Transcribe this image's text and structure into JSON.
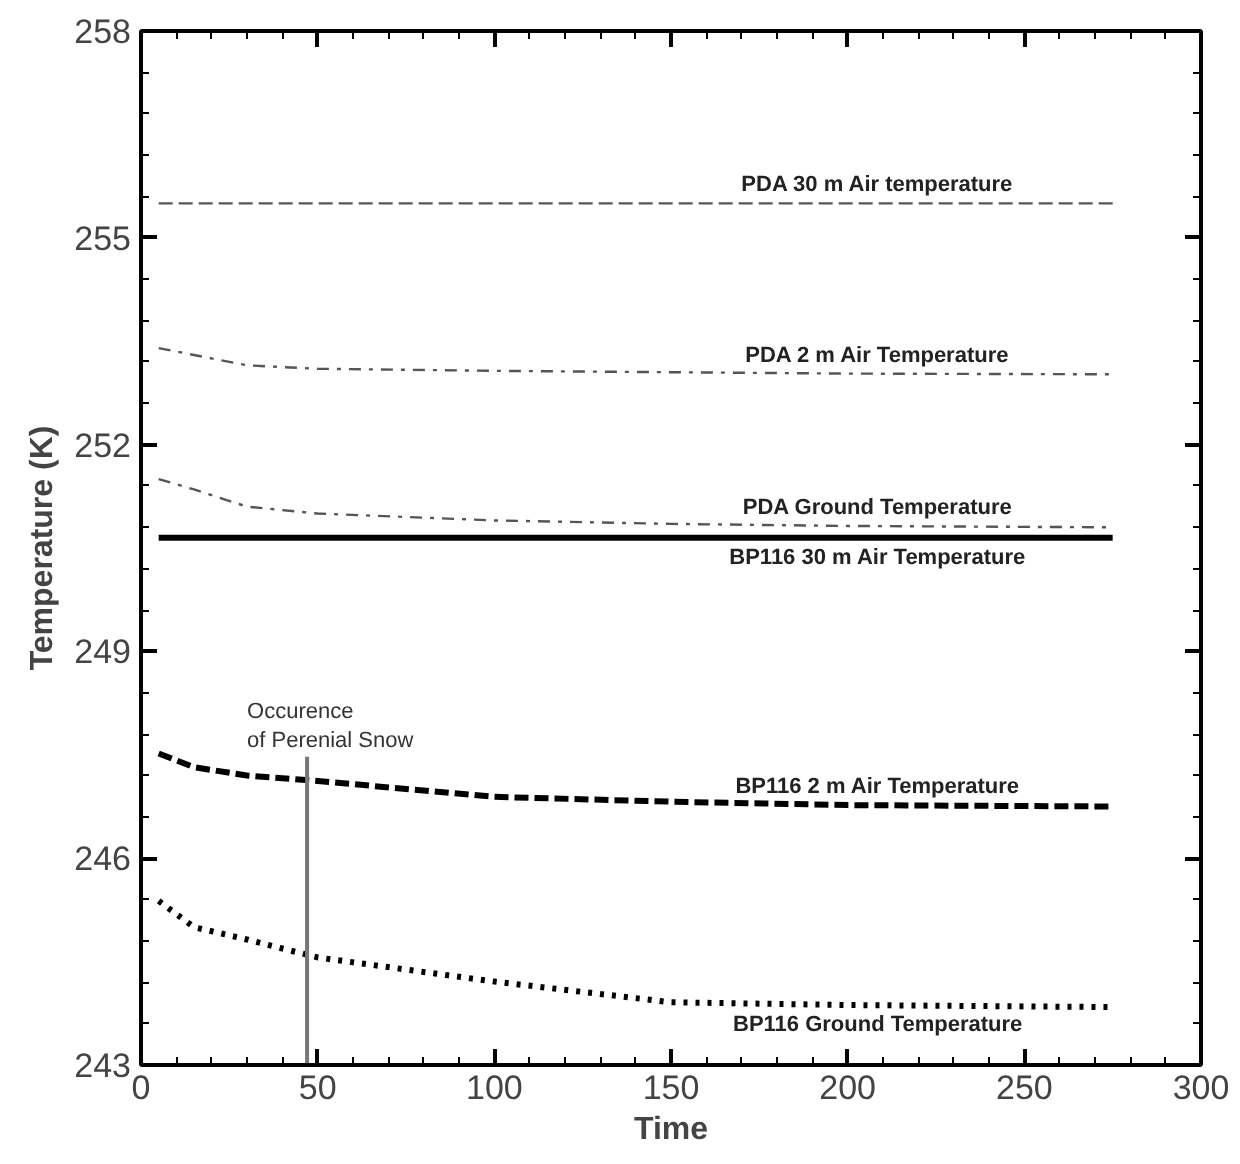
{
  "chart_data": {
    "type": "line",
    "xlabel": "Time",
    "ylabel": "Temperature (K)",
    "x": [
      5,
      15,
      30,
      50,
      100,
      150,
      200,
      275
    ],
    "series": [
      {
        "name": "PDA 30 m Air temperature",
        "color": "#555555",
        "line_style": "dashed",
        "values": [
          255.5,
          255.5,
          255.5,
          255.5,
          255.5,
          255.5,
          255.5,
          255.5
        ]
      },
      {
        "name": "PDA 2 m Air Temperature",
        "color": "#555555",
        "line_style": "dashdot",
        "values": [
          253.4,
          253.3,
          253.15,
          253.1,
          253.07,
          253.05,
          253.03,
          253.02
        ]
      },
      {
        "name": "PDA Ground Temperature",
        "color": "#555555",
        "line_style": "dashdot",
        "values": [
          251.5,
          251.35,
          251.1,
          251.0,
          250.9,
          250.85,
          250.82,
          250.8
        ]
      },
      {
        "name": "BP116 30 m Air Temperature",
        "color": "#000000",
        "line_style": "solid",
        "values": [
          250.65,
          250.65,
          250.65,
          250.65,
          250.65,
          250.65,
          250.65,
          250.65
        ]
      },
      {
        "name": "BP116 2 m Air Temperature",
        "color": "#000000",
        "line_style": "dashed",
        "values": [
          247.52,
          247.32,
          247.2,
          247.12,
          246.89,
          246.82,
          246.77,
          246.75
        ]
      },
      {
        "name": "BP116 Ground Temperature",
        "color": "#000000",
        "line_style": "dotted",
        "values": [
          245.38,
          245.0,
          244.82,
          244.56,
          244.21,
          243.91,
          243.87,
          243.84
        ]
      }
    ],
    "ref_lines": [
      {
        "axis": "x",
        "value": 47,
        "label": "Occurence\nof Perenial Snow",
        "color": "#777777",
        "line_style": "solid"
      }
    ],
    "xlim": [
      0,
      300
    ],
    "ylim": [
      243,
      258
    ],
    "xticks": [
      0,
      50,
      100,
      150,
      200,
      250,
      300
    ],
    "yticks": [
      243,
      246,
      249,
      252,
      255,
      258
    ],
    "grid": false,
    "marker": "none"
  }
}
